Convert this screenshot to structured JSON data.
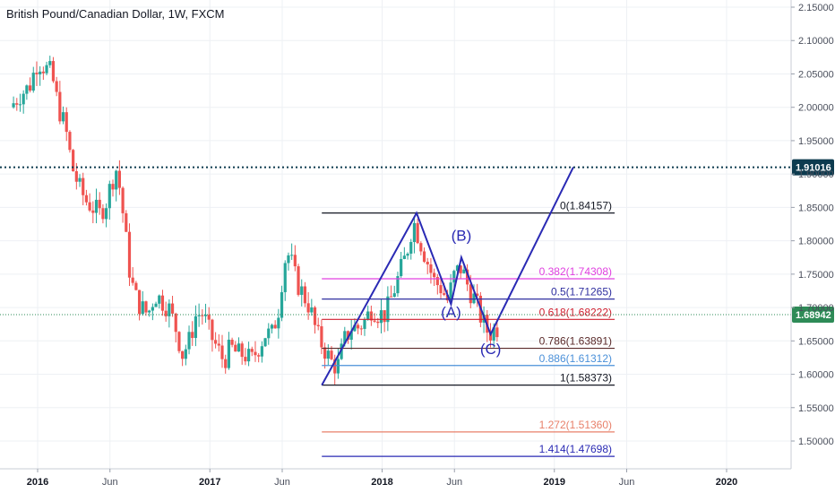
{
  "header": {
    "title": "British Pound/Canadian Dollar, 1W, FXCM"
  },
  "chart_data": {
    "type": "candlestick",
    "symbol": "British Pound/Canadian Dollar",
    "interval": "1W",
    "source": "FXCM",
    "y_axis": {
      "ticks": [
        "2.15000",
        "2.10000",
        "2.05000",
        "2.00000",
        "1.95000",
        "1.90000",
        "1.85000",
        "1.80000",
        "1.75000",
        "1.70000",
        "1.65000",
        "1.60000",
        "1.55000",
        "1.50000"
      ],
      "range": [
        1.458,
        2.158
      ]
    },
    "x_axis": {
      "ticks": [
        {
          "label": "2016",
          "bold": true
        },
        {
          "label": "Jun",
          "bold": false
        },
        {
          "label": "2017",
          "bold": true
        },
        {
          "label": "Jun",
          "bold": false
        },
        {
          "label": "2018",
          "bold": true
        },
        {
          "label": "Jun",
          "bold": false
        },
        {
          "label": "2019",
          "bold": true
        },
        {
          "label": "Jun",
          "bold": false
        },
        {
          "label": "2020",
          "bold": true
        }
      ]
    },
    "series_path": [
      [
        2015.86,
        2.0
      ],
      [
        2015.92,
        2.02
      ],
      [
        2015.97,
        2.03
      ],
      [
        2016.02,
        2.07
      ],
      [
        2016.06,
        2.06
      ],
      [
        2016.1,
        2.05
      ],
      [
        2016.14,
        2.0
      ],
      [
        2016.18,
        1.97
      ],
      [
        2016.22,
        1.91
      ],
      [
        2016.26,
        1.88
      ],
      [
        2016.3,
        1.86
      ],
      [
        2016.34,
        1.85
      ],
      [
        2016.38,
        1.84
      ],
      [
        2016.42,
        1.86
      ],
      [
        2016.45,
        1.89
      ],
      [
        2016.48,
        1.91
      ],
      [
        2016.52,
        1.83
      ],
      [
        2016.55,
        1.76
      ],
      [
        2016.58,
        1.72
      ],
      [
        2016.62,
        1.7
      ],
      [
        2016.66,
        1.69
      ],
      [
        2016.7,
        1.72
      ],
      [
        2016.74,
        1.71
      ],
      [
        2016.78,
        1.7
      ],
      [
        2016.82,
        1.67
      ],
      [
        2016.86,
        1.63
      ],
      [
        2016.9,
        1.65
      ],
      [
        2016.94,
        1.69
      ],
      [
        2016.98,
        1.69
      ],
      [
        2017.02,
        1.66
      ],
      [
        2017.06,
        1.64
      ],
      [
        2017.1,
        1.62
      ],
      [
        2017.14,
        1.64
      ],
      [
        2017.18,
        1.63
      ],
      [
        2017.22,
        1.63
      ],
      [
        2017.26,
        1.62
      ],
      [
        2017.3,
        1.64
      ],
      [
        2017.34,
        1.66
      ],
      [
        2017.38,
        1.66
      ],
      [
        2017.42,
        1.7
      ],
      [
        2017.45,
        1.77
      ],
      [
        2017.48,
        1.78
      ],
      [
        2017.52,
        1.74
      ],
      [
        2017.56,
        1.72
      ],
      [
        2017.6,
        1.7
      ],
      [
        2017.64,
        1.66
      ],
      [
        2017.68,
        1.64
      ],
      [
        2017.72,
        1.62
      ],
      [
        2017.76,
        1.61
      ],
      [
        2017.8,
        1.65
      ],
      [
        2017.84,
        1.67
      ],
      [
        2017.88,
        1.67
      ],
      [
        2017.92,
        1.68
      ],
      [
        2017.96,
        1.7
      ],
      [
        2018.0,
        1.69
      ],
      [
        2018.04,
        1.69
      ],
      [
        2018.08,
        1.72
      ],
      [
        2018.12,
        1.75
      ],
      [
        2018.16,
        1.78
      ],
      [
        2018.2,
        1.83
      ],
      [
        2018.24,
        1.8
      ],
      [
        2018.28,
        1.77
      ],
      [
        2018.32,
        1.74
      ],
      [
        2018.36,
        1.73
      ],
      [
        2018.4,
        1.71
      ],
      [
        2018.44,
        1.75
      ],
      [
        2018.48,
        1.76
      ],
      [
        2018.52,
        1.73
      ],
      [
        2018.56,
        1.71
      ],
      [
        2018.6,
        1.68
      ],
      [
        2018.64,
        1.66
      ],
      [
        2018.68,
        1.67
      ]
    ],
    "price_lines": [
      {
        "value": 1.91016,
        "label": "1.91016",
        "color": "#0d3b4f",
        "style": "dotted"
      },
      {
        "value": 1.68942,
        "label": "1.68942",
        "color": "#2e8b57",
        "style": "dotted"
      }
    ],
    "fibonacci": {
      "start_x": 2017.65,
      "end_x": 2019.35,
      "levels": [
        {
          "label": "0(1.84157)",
          "value": 1.84157,
          "color": "#131722"
        },
        {
          "label": "0.382(1.74308)",
          "value": 1.74308,
          "color": "#e040e0"
        },
        {
          "label": "0.5(1.71265)",
          "value": 1.71265,
          "color": "#3030a0"
        },
        {
          "label": "0.618(1.68222)",
          "value": 1.68222,
          "color": "#d02030"
        },
        {
          "label": "0.786(1.63891)",
          "value": 1.63891,
          "color": "#5a2a2a"
        },
        {
          "label": "0.886(1.61312)",
          "value": 1.61312,
          "color": "#4a90d9"
        },
        {
          "label": "1(1.58373)",
          "value": 1.58373,
          "color": "#131722"
        },
        {
          "label": "1.272(1.51360)",
          "value": 1.5136,
          "color": "#e8806a"
        },
        {
          "label": "1.414(1.47698)",
          "value": 1.47698,
          "color": "#2a2ab4"
        }
      ]
    },
    "wave_path": [
      [
        2017.65,
        1.58373
      ],
      [
        2018.2,
        1.84157
      ],
      [
        2018.4,
        1.705
      ],
      [
        2018.46,
        1.775
      ],
      [
        2018.63,
        1.66
      ],
      [
        2019.11,
        1.91016
      ]
    ],
    "wave_labels": [
      {
        "text": "(B)",
        "x": 2018.46,
        "y": 1.8
      },
      {
        "text": "(A)",
        "x": 2018.4,
        "y": 1.685
      },
      {
        "text": "(C)",
        "x": 2018.63,
        "y": 1.63
      }
    ],
    "colors": {
      "up": "#26a69a",
      "down": "#ef5350",
      "wave": "#2a2ab4",
      "grid": "#eef0f4"
    }
  }
}
